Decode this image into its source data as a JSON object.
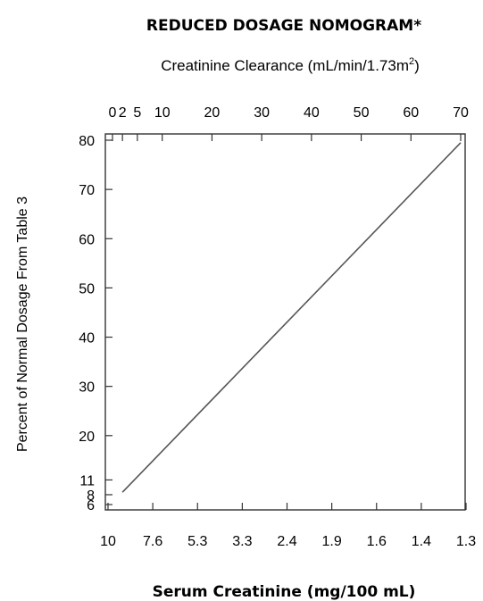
{
  "chart_data": {
    "type": "line",
    "title": "REDUCED DOSAGE NOMOGRAM*",
    "top_axis": {
      "label_prefix": "Creatinine Clearance (mL/min/1.73m",
      "label_sup": "2",
      "label_suffix": ")",
      "ticks": [
        "0",
        "2",
        "5",
        "10",
        "20",
        "30",
        "40",
        "50",
        "60",
        "70"
      ],
      "tick_values": [
        0,
        2,
        5,
        10,
        20,
        30,
        40,
        50,
        60,
        70
      ]
    },
    "bottom_axis": {
      "label": "Serum Creatinine (mg/100 mL)",
      "ticks": [
        "10",
        "7.6",
        "5.3",
        "3.3",
        "2.4",
        "1.9",
        "1.6",
        "1.4",
        "1.3"
      ]
    },
    "y_axis": {
      "label": "Percent of Normal Dosage From Table 3",
      "ticks": [
        "6",
        "8",
        "11",
        "20",
        "30",
        "40",
        "50",
        "60",
        "70",
        "80"
      ],
      "tick_values": [
        6,
        8,
        11,
        20,
        30,
        40,
        50,
        60,
        70,
        80
      ]
    },
    "series": [
      {
        "x": [
          2,
          70
        ],
        "y": [
          8.5,
          79.5
        ]
      }
    ],
    "line_color": "#555555"
  }
}
